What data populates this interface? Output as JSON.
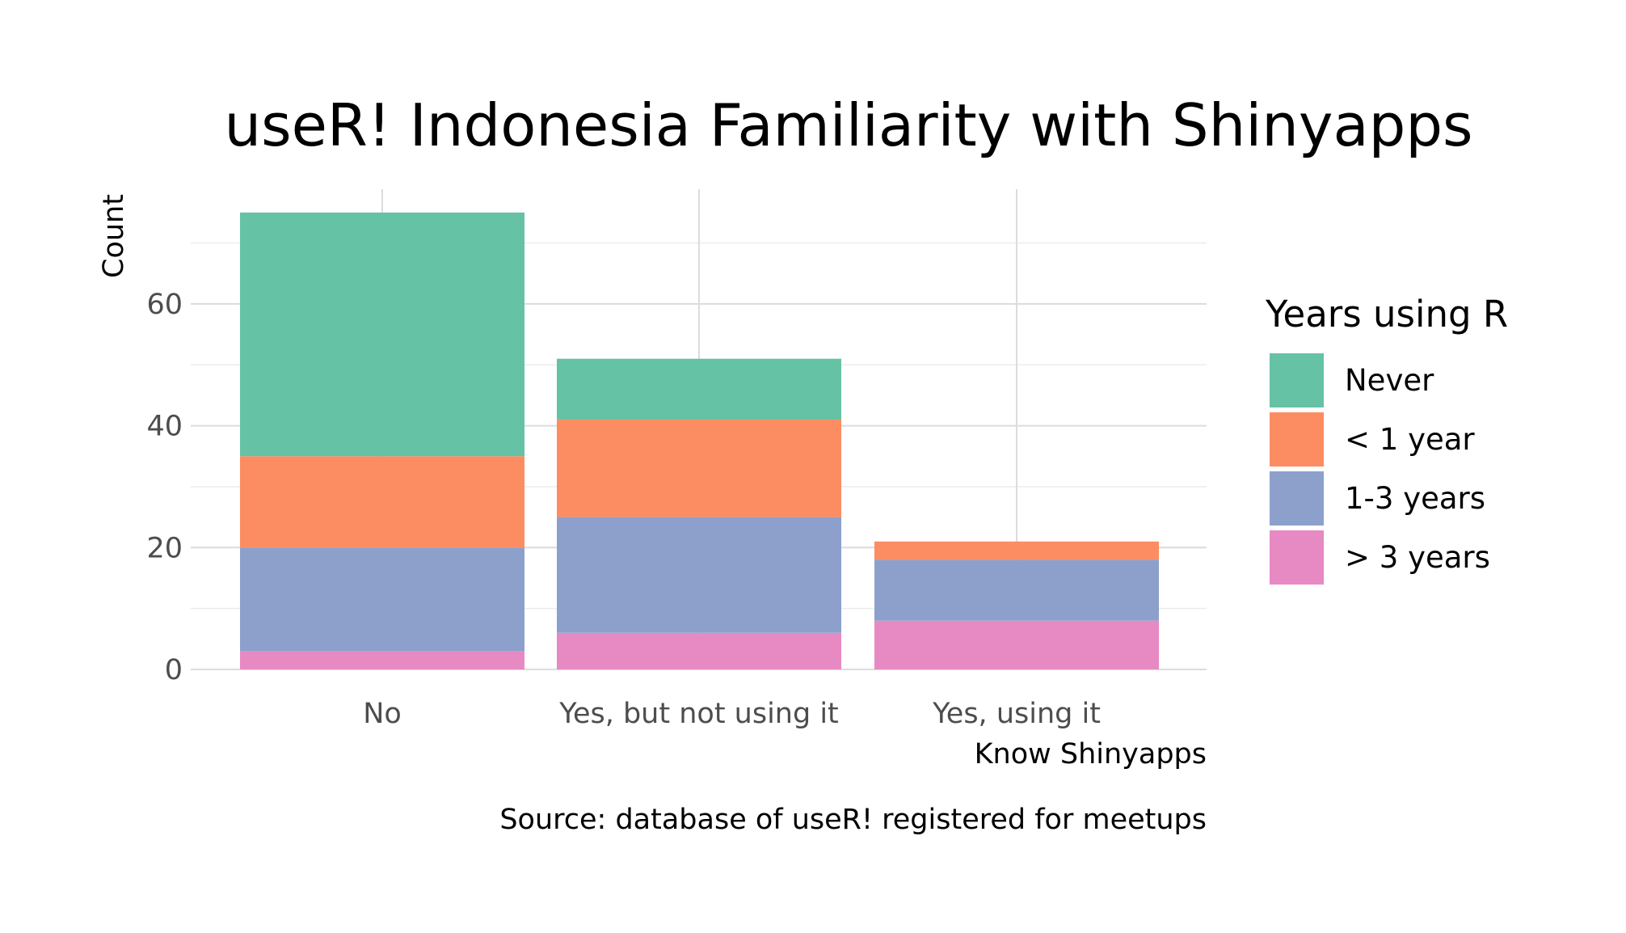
{
  "chart_data": {
    "type": "bar",
    "stacked": true,
    "title": "useR! Indonesia Familiarity with Shinyapps",
    "xlabel": "Know Shinyapps",
    "ylabel": "Count",
    "caption": "Source: database of useR! registered for meetups",
    "categories": [
      "No",
      "Yes, but not using it",
      "Yes, using it"
    ],
    "ylim": [
      0,
      75
    ],
    "yticks": [
      0,
      20,
      40,
      60
    ],
    "grid": true,
    "legend": {
      "title": "Years using R",
      "position": "right"
    },
    "series": [
      {
        "name": "Never",
        "color": "#66C2A5",
        "values": [
          40,
          10,
          0
        ]
      },
      {
        "name": "< 1 year",
        "color": "#FC8D62",
        "values": [
          15,
          16,
          3
        ]
      },
      {
        "name": "1-3 years",
        "color": "#8DA0CB",
        "values": [
          17,
          19,
          10
        ]
      },
      {
        "name": "> 3 years",
        "color": "#E78AC3",
        "values": [
          3,
          6,
          8
        ]
      }
    ]
  }
}
